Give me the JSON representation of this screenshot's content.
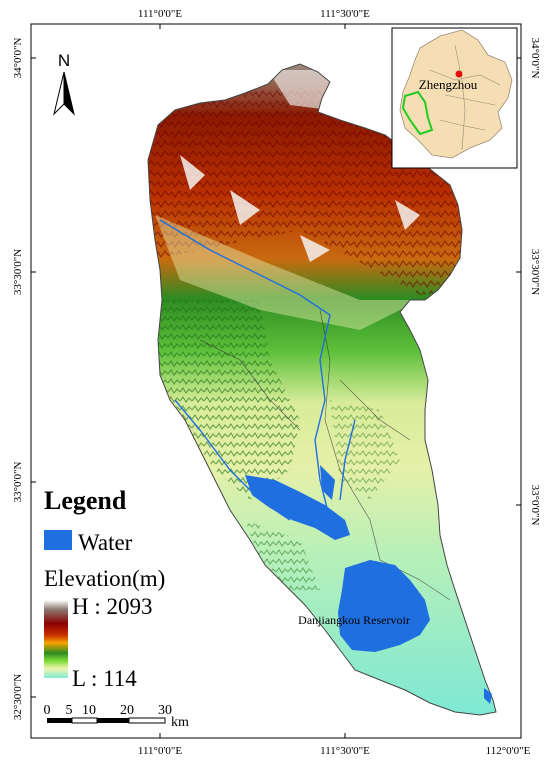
{
  "map": {
    "top_ticks": [
      "111°0'0\"E",
      "111°30'0\"E"
    ],
    "bottom_ticks": [
      "111°0'0\"E",
      "111°30'0\"E",
      "112°0'0\"E"
    ],
    "left_ticks": [
      "34°0'0\"N",
      "33°30'0\"N",
      "33°0'0\"N",
      "32°30'0\"N"
    ],
    "right_ticks": [
      "34°0'0\"N",
      "33°30'0\"N",
      "33°0'0\"N"
    ],
    "north_label": "N",
    "reservoir_label": "Danjiangkou Reservoir"
  },
  "inset": {
    "city_label": "Zhengzhou"
  },
  "legend": {
    "title": "Legend",
    "water_label": "Water",
    "elevation_title": "Elevation(m)",
    "high_label": "H : 2093",
    "low_label": "L : 114",
    "colors": {
      "water": "#1f6fe0",
      "ramp": [
        "#ffffff",
        "#8c7b73",
        "#8b0000",
        "#c83200",
        "#f5a300",
        "#2e8b22",
        "#7ddc3a",
        "#f0f5b0",
        "#80ecd4"
      ]
    }
  },
  "scale_bar": {
    "ticks": [
      "0",
      "5",
      "10",
      "20",
      "30"
    ],
    "unit": "km"
  }
}
